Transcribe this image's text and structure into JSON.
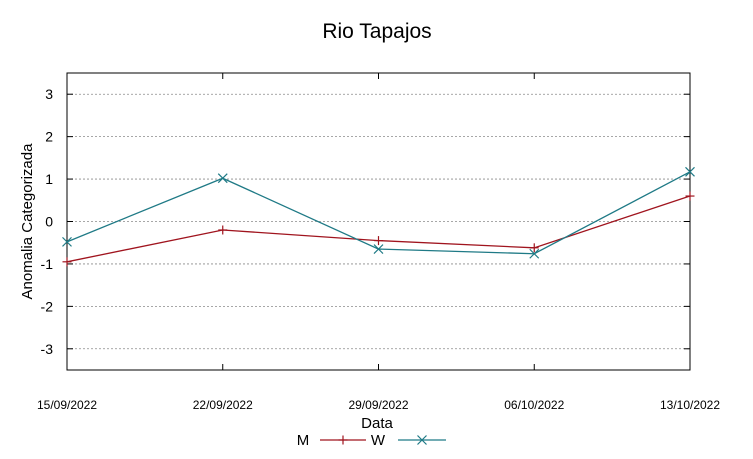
{
  "chart_data": {
    "type": "line",
    "title": "Rio Tapajos",
    "xlabel": "Data",
    "ylabel": "Anomalia Categorizada",
    "categories": [
      "15/09/2022",
      "22/09/2022",
      "29/09/2022",
      "06/10/2022",
      "13/10/2022"
    ],
    "ylim": [
      -3.5,
      3.5
    ],
    "yticks": [
      -3,
      -2,
      -1,
      0,
      1,
      2,
      3
    ],
    "grid": true,
    "legend": "bottom-center",
    "series": [
      {
        "name": "M",
        "values": [
          -0.95,
          -0.2,
          -0.45,
          -0.62,
          0.6
        ],
        "color": "#a0141e",
        "marker": "plus"
      },
      {
        "name": "W",
        "values": [
          -0.48,
          1.02,
          -0.65,
          -0.76,
          1.17
        ],
        "color": "#1f7a86",
        "marker": "cross"
      }
    ]
  }
}
